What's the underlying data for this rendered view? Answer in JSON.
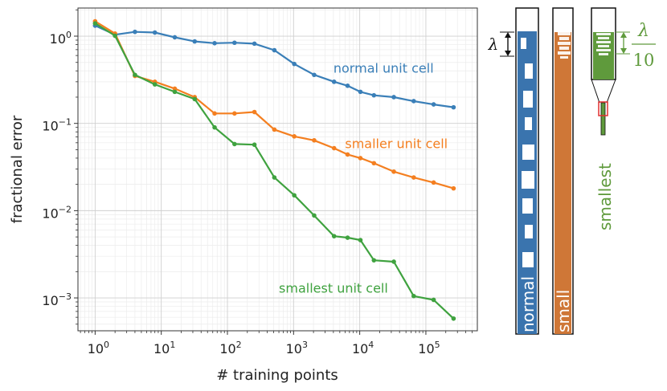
{
  "chart_data": {
    "type": "line",
    "xlabel": "# training points",
    "ylabel": "fractional error",
    "xscale": "log",
    "yscale": "log",
    "xlim": [
      0.55,
      600000
    ],
    "ylim": [
      0.00042,
      2.1
    ],
    "grid": true,
    "x_ticks": [
      {
        "value": 1,
        "base": "10",
        "exp": "0"
      },
      {
        "value": 10,
        "base": "10",
        "exp": "1"
      },
      {
        "value": 100,
        "base": "10",
        "exp": "2"
      },
      {
        "value": 1000,
        "base": "10",
        "exp": "3"
      },
      {
        "value": 10000,
        "base": "10",
        "exp": "4"
      },
      {
        "value": 100000,
        "base": "10",
        "exp": "5"
      }
    ],
    "y_ticks": [
      {
        "value": 1,
        "base": "10",
        "exp": "0"
      },
      {
        "value": 0.1,
        "base": "10",
        "exp": "−1"
      },
      {
        "value": 0.01,
        "base": "10",
        "exp": "−2"
      },
      {
        "value": 0.001,
        "base": "10",
        "exp": "−3"
      }
    ],
    "x": [
      1,
      2,
      4,
      8,
      16,
      32,
      64,
      128,
      256,
      512,
      1024,
      2048,
      4096,
      6554,
      10240,
      16384,
      32768,
      65536,
      131072,
      262144
    ],
    "series": [
      {
        "name": "normal unit cell",
        "color": "#3a7fb8",
        "label_anchor": [
          4000,
          0.38
        ],
        "values": [
          1.32,
          1.04,
          1.12,
          1.1,
          0.97,
          0.87,
          0.83,
          0.84,
          0.82,
          0.69,
          0.48,
          0.36,
          0.3,
          0.27,
          0.23,
          0.21,
          0.2,
          0.18,
          0.165,
          0.153
        ]
      },
      {
        "name": "smaller unit cell",
        "color": "#f47f20",
        "label_anchor": [
          6000,
          0.052
        ],
        "values": [
          1.48,
          1.07,
          0.35,
          0.3,
          0.25,
          0.2,
          0.13,
          0.13,
          0.135,
          0.085,
          0.071,
          0.064,
          0.052,
          0.044,
          0.04,
          0.035,
          0.028,
          0.024,
          0.021,
          0.018
        ]
      },
      {
        "name": "smallest unit cell",
        "color": "#3fa23f",
        "label_anchor": [
          600,
          0.00115
        ],
        "values": [
          1.4,
          1.01,
          0.36,
          0.28,
          0.23,
          0.19,
          0.09,
          0.058,
          0.057,
          0.024,
          0.015,
          0.0088,
          0.0051,
          0.0049,
          0.0046,
          0.0027,
          0.0026,
          0.00105,
          0.00095,
          0.00058
        ]
      }
    ]
  },
  "side_panels": {
    "normal": {
      "label": "normal",
      "color": "#3a74ae"
    },
    "small": {
      "label": "small",
      "color": "#cf7737"
    },
    "smallest": {
      "label": "smallest",
      "color": "#5f9a3c",
      "highlight_color": "#e03030"
    },
    "lambda_symbol": "λ",
    "fraction_numerator": "λ",
    "fraction_denominator": "10"
  }
}
